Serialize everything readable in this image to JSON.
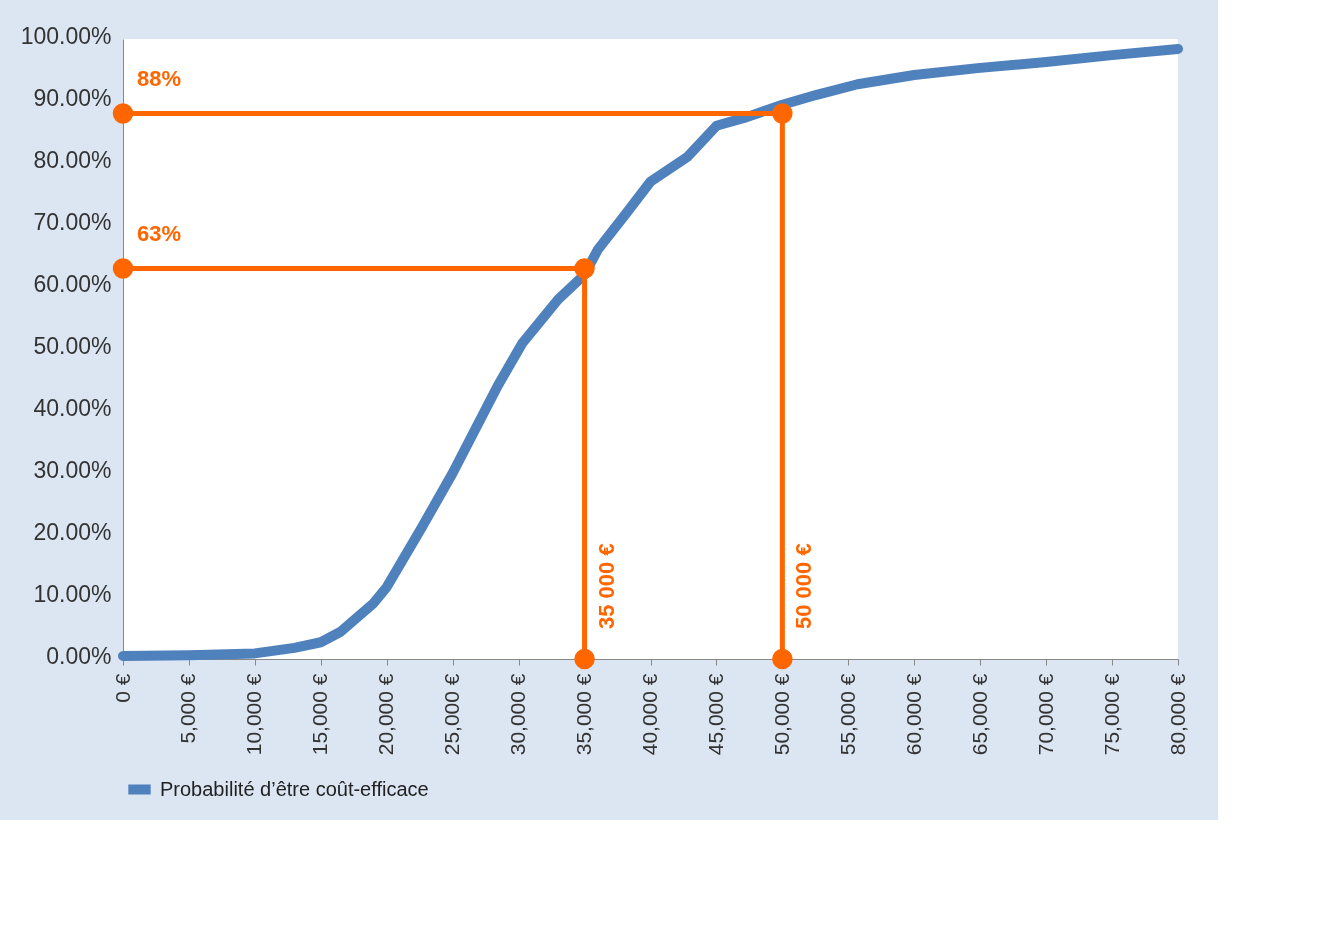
{
  "chart_data": {
    "type": "line",
    "series": [
      {
        "name": "Probabilité d’être coût-efficace",
        "color": "#4f81bd",
        "marker": "none",
        "x": [
          0,
          5000,
          10000,
          13000,
          15000,
          16500,
          19000,
          20000,
          22600,
          25000,
          28400,
          30300,
          33000,
          35000,
          36000,
          38200,
          40000,
          42800,
          45000,
          47300,
          50000,
          52600,
          55700,
          60000,
          64800,
          70000,
          75000,
          80000
        ],
        "values": [
          0.5,
          0.6,
          0.9,
          1.8,
          2.7,
          4.4,
          9,
          11.6,
          21,
          30,
          44,
          51,
          58,
          62,
          66,
          72,
          77,
          81,
          86,
          87.4,
          89.4,
          91,
          92.7,
          94.2,
          95.3,
          96.3,
          97.4,
          98.4
        ]
      },
      {
        "color": "#ff6600",
        "marker": "circle",
        "x": [
          0,
          50000,
          50000
        ],
        "values": [
          88,
          88,
          0
        ]
      },
      {
        "color": "#ff6600",
        "marker": "circle",
        "x": [
          0,
          35000,
          35000
        ],
        "values": [
          63,
          63,
          0
        ]
      }
    ],
    "annotations": [
      {
        "text": "88%",
        "x": 0,
        "y": 88
      },
      {
        "text": "63%",
        "x": 0,
        "y": 63
      },
      {
        "text": "35 000 €",
        "x": 35000,
        "y": 0
      },
      {
        "text": "50 000 €",
        "x": 50000,
        "y": 0
      }
    ],
    "xlim": [
      0,
      80000
    ],
    "xticks": [
      {
        "value": 0,
        "label": "0 €"
      },
      {
        "value": 5000,
        "label": "5,000 €"
      },
      {
        "value": 10000,
        "label": "10,000 €"
      },
      {
        "value": 15000,
        "label": "15,000 €"
      },
      {
        "value": 20000,
        "label": "20,000 €"
      },
      {
        "value": 25000,
        "label": "25,000 €"
      },
      {
        "value": 30000,
        "label": "30,000 €"
      },
      {
        "value": 35000,
        "label": "35,000 €"
      },
      {
        "value": 40000,
        "label": "40,000 €"
      },
      {
        "value": 45000,
        "label": "45,000 €"
      },
      {
        "value": 50000,
        "label": "50,000 €"
      },
      {
        "value": 55000,
        "label": "55,000 €"
      },
      {
        "value": 60000,
        "label": "60,000 €"
      },
      {
        "value": 65000,
        "label": "65,000 €"
      },
      {
        "value": 70000,
        "label": "70,000 €"
      },
      {
        "value": 75000,
        "label": "75,000 €"
      },
      {
        "value": 80000,
        "label": "80,000 €"
      }
    ],
    "ylim": [
      0,
      100
    ],
    "yticks": [
      {
        "value": 0,
        "label": "0.00%"
      },
      {
        "value": 10,
        "label": "10.00%"
      },
      {
        "value": 20,
        "label": "20.00%"
      },
      {
        "value": 30,
        "label": "30.00%"
      },
      {
        "value": 40,
        "label": "40.00%"
      },
      {
        "value": 50,
        "label": "50.00%"
      },
      {
        "value": 60,
        "label": "60.00%"
      },
      {
        "value": 70,
        "label": "70.00%"
      },
      {
        "value": 80,
        "label": "80.00%"
      },
      {
        "value": 90,
        "label": "90.00%"
      },
      {
        "value": 100,
        "label": "100.00%"
      }
    ],
    "grid": false,
    "legend": "bottom"
  }
}
